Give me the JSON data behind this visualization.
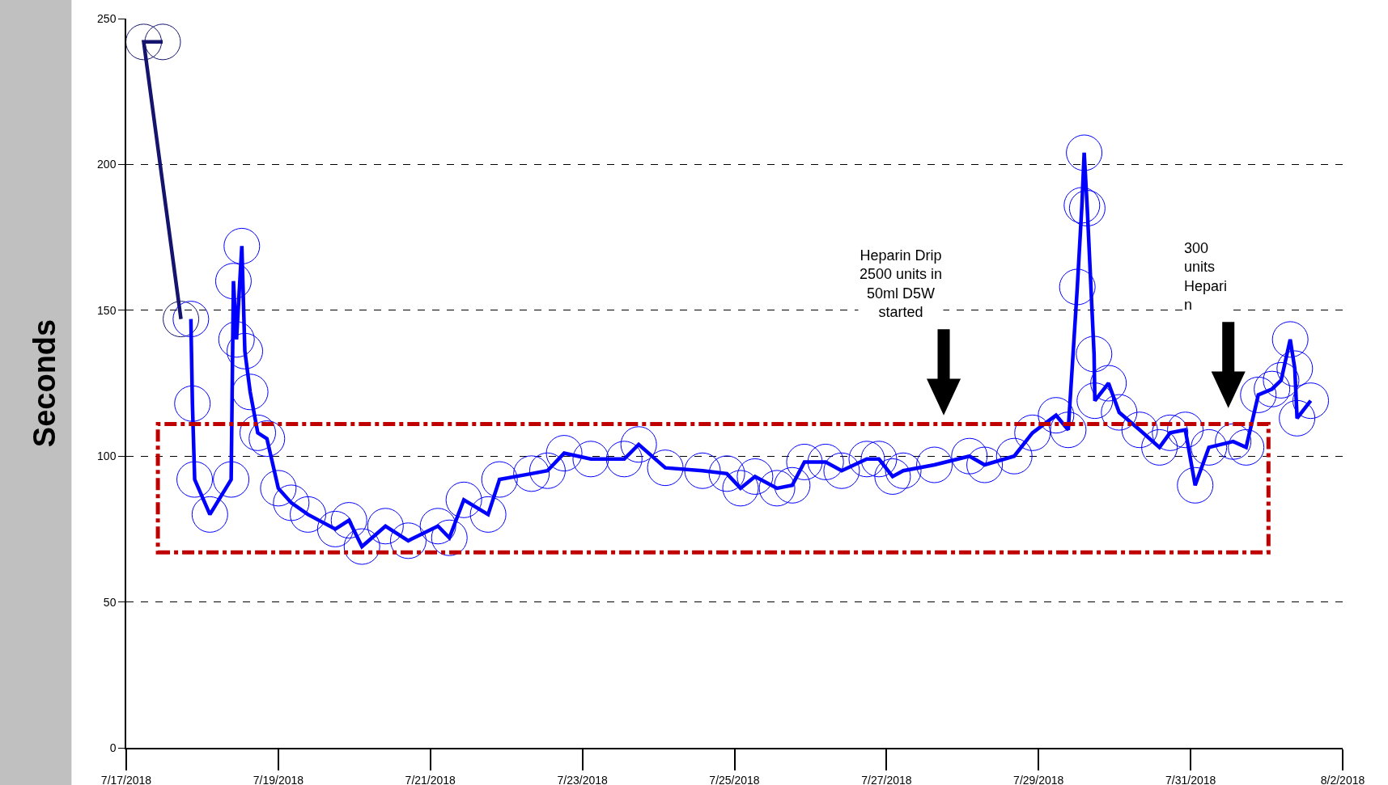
{
  "chart_data": {
    "type": "line",
    "ylabel": "Seconds",
    "xlim": [
      "2018-07-17",
      "2018-08-02"
    ],
    "ylim": [
      0,
      250
    ],
    "xticks": [
      {
        "value": "2018-07-17",
        "label": "7/17/2018"
      },
      {
        "value": "2018-07-19",
        "label": "7/19/2018"
      },
      {
        "value": "2018-07-21",
        "label": "7/21/2018"
      },
      {
        "value": "2018-07-23",
        "label": "7/23/2018"
      },
      {
        "value": "2018-07-25",
        "label": "7/25/2018"
      },
      {
        "value": "2018-07-27",
        "label": "7/27/2018"
      },
      {
        "value": "2018-07-29",
        "label": "7/29/2018"
      },
      {
        "value": "2018-07-31",
        "label": "7/31/2018"
      },
      {
        "value": "2018-08-02",
        "label": "8/2/2018"
      }
    ],
    "yticks": [
      0,
      50,
      100,
      150,
      200,
      250
    ],
    "grid": "y",
    "marker": "circle",
    "line_style": "solid",
    "series": [
      {
        "color": "#14146e",
        "x": [
          "2018-07-17T11:30",
          "2018-07-17T05:30",
          "2018-07-17T17:16"
        ],
        "values": [
          242,
          242,
          147
        ]
      },
      {
        "color": "#0000ff",
        "x": [
          "2018-07-17T20:24",
          "2018-07-17T20:53",
          "2018-07-17T21:36",
          "2018-07-18T02:24",
          "2018-07-18T09:07",
          "2018-07-18T09:50",
          "2018-07-18T10:48",
          "2018-07-18T12:29",
          "2018-07-18T13:26",
          "2018-07-18T15:07",
          "2018-07-18T17:31",
          "2018-07-18T20:24",
          "2018-07-19T00:00",
          "2018-07-19T04:05",
          "2018-07-19T09:22",
          "2018-07-19T18:00",
          "2018-07-19T22:19",
          "2018-07-20T02:24",
          "2018-07-20T09:50",
          "2018-07-20T17:02",
          "2018-07-21T02:24",
          "2018-07-21T06:00",
          "2018-07-21T10:34",
          "2018-07-21T18:14",
          "2018-07-21T21:50",
          "2018-07-22T07:55",
          "2018-07-22T12:58",
          "2018-07-22T18:14",
          "2018-07-23T02:38",
          "2018-07-23T13:12",
          "2018-07-23T17:46",
          "2018-07-24T02:10",
          "2018-07-24T13:55",
          "2018-07-24T21:36",
          "2018-07-25T01:55",
          "2018-07-25T06:29",
          "2018-07-25T13:26",
          "2018-07-25T18:14",
          "2018-07-25T22:05",
          "2018-07-26T04:48",
          "2018-07-26T09:50",
          "2018-07-26T17:46",
          "2018-07-26T21:36",
          "2018-07-27T01:55",
          "2018-07-27T05:17",
          "2018-07-27T15:07",
          "2018-07-28T02:10",
          "2018-07-28T06:58",
          "2018-07-28T16:19",
          "2018-07-28T22:05",
          "2018-07-29T05:31",
          "2018-07-29T09:22",
          "2018-07-29T12:14",
          "2018-07-29T13:41",
          "2018-07-29T14:24",
          "2018-07-29T15:22",
          "2018-07-29T17:31",
          "2018-07-29T17:46",
          "2018-07-29T22:05",
          "2018-07-30T01:26",
          "2018-07-30T07:55",
          "2018-07-30T14:10",
          "2018-07-30T17:31",
          "2018-07-30T22:19",
          "2018-07-31T01:26",
          "2018-07-31T05:46",
          "2018-07-31T13:26",
          "2018-07-31T17:31",
          "2018-07-31T21:22",
          "2018-08-01T01:41",
          "2018-08-01T04:34",
          "2018-08-01T07:26",
          "2018-08-01T08:53",
          "2018-08-01T09:36",
          "2018-08-01T13:55"
        ],
        "values": [
          147,
          118,
          92,
          80,
          92,
          160,
          140,
          172,
          136,
          122,
          108,
          106,
          89,
          84,
          80,
          75,
          78,
          69,
          76,
          71,
          76,
          72,
          85,
          80,
          92,
          94,
          95,
          101,
          99,
          99,
          104,
          96,
          95,
          94,
          89,
          93,
          89,
          90,
          98,
          98,
          95,
          99,
          99,
          93,
          95,
          97,
          100,
          97,
          100,
          108,
          114,
          109,
          158,
          186,
          204,
          185,
          135,
          119,
          125,
          115,
          109,
          103,
          108,
          109,
          90,
          103,
          105,
          103,
          121,
          123,
          126,
          140,
          130,
          113,
          119
        ]
      }
    ],
    "annotations": [
      "Heparin Drip\n2500 units in\n50ml D5W\nstarted",
      "300\nunits\nHepari\nn"
    ]
  }
}
